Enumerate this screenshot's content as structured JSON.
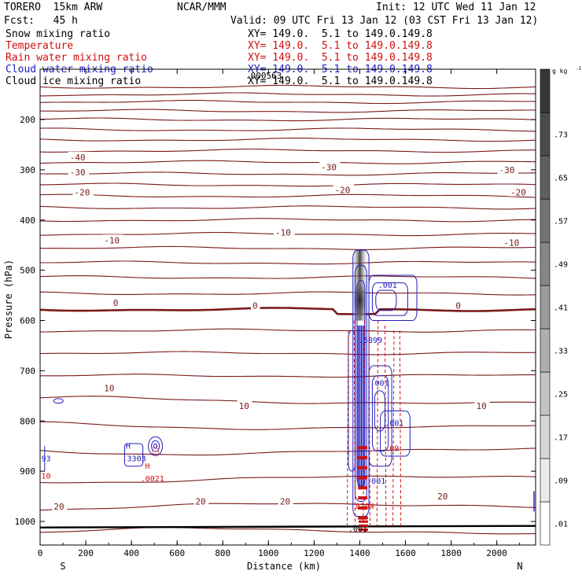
{
  "header": {
    "model": "TORERO  15km ARW",
    "org": "NCAR/MMM",
    "init": "Init: 12 UTC Wed 11 Jan 12",
    "fcst": "Fcst:   45 h",
    "valid": "Valid: 09 UTC Fri 13 Jan 12 (03 CST Fri 13 Jan 12)",
    "fields": [
      {
        "name": "Snow mixing ratio",
        "xy": "XY= 149.0.  5.1 to 149.0.149.8",
        "color": "#000000"
      },
      {
        "name": "Temperature",
        "xy": "XY= 149.0.  5.1 to 149.0.149.8",
        "color": "#d01010"
      },
      {
        "name": "Rain water mixing ratio",
        "xy": "XY= 149.0.  5.1 to 149.0.149.8",
        "color": "#d01010"
      },
      {
        "name": "Cloud water mixing ratio",
        "xy": "XY= 149.0.  5.1 to 149.0.149.8",
        "color": "#2020c0"
      },
      {
        "name": "Cloud ice mixing ratio",
        "xy": "XY= 149.0.  5.1 to 149.0.149.8",
        "color": "#000000"
      }
    ],
    "overlap_label": ".000563"
  },
  "chart_data": {
    "type": "contour-cross-section",
    "xlabel": "Distance (km)",
    "ylabel": "Pressure (hPa)",
    "xlim": [
      0,
      2170
    ],
    "ylim_hpa": [
      1050,
      115
    ],
    "x_ticks": [
      "0",
      "200",
      "400",
      "600",
      "800",
      "1000",
      "1200",
      "1400",
      "1600",
      "1800",
      "2000"
    ],
    "x_tick_values": [
      0,
      200,
      400,
      600,
      800,
      1000,
      1200,
      1400,
      1600,
      1800,
      2000
    ],
    "y_ticks": [
      "200",
      "300",
      "400",
      "500",
      "600",
      "700",
      "800",
      "900",
      "1000"
    ],
    "y_tick_values": [
      200,
      300,
      400,
      500,
      600,
      700,
      800,
      900,
      1000
    ],
    "end_left": "S",
    "end_right": "N",
    "colorbar": {
      "unit": "g kg",
      "unit_sup": "-1",
      "labels": [
        ".01",
        ".09",
        ".17",
        ".25",
        ".33",
        ".41",
        ".49",
        ".57",
        ".65",
        ".73"
      ],
      "levels": [
        0.01,
        0.09,
        0.17,
        0.25,
        0.33,
        0.41,
        0.49,
        0.57,
        0.65,
        0.73
      ]
    },
    "temperature_labels": [
      {
        "text": "-40",
        "x": 130,
        "p": 275
      },
      {
        "text": "-30",
        "x": 130,
        "p": 305
      },
      {
        "text": "-30",
        "x": 1230,
        "p": 295
      },
      {
        "text": "-30",
        "x": 2010,
        "p": 300
      },
      {
        "text": "-20",
        "x": 150,
        "p": 345
      },
      {
        "text": "-20",
        "x": 1290,
        "p": 340
      },
      {
        "text": "-20",
        "x": 2060,
        "p": 345
      },
      {
        "text": "-10",
        "x": 280,
        "p": 440
      },
      {
        "text": "-10",
        "x": 1030,
        "p": 425
      },
      {
        "text": "-10",
        "x": 2030,
        "p": 445
      },
      {
        "text": "0",
        "x": 320,
        "p": 565
      },
      {
        "text": "0",
        "x": 930,
        "p": 570
      },
      {
        "text": "0",
        "x": 1820,
        "p": 570
      },
      {
        "text": "10",
        "x": 280,
        "p": 735
      },
      {
        "text": "10",
        "x": 870,
        "p": 770
      },
      {
        "text": "10",
        "x": 1910,
        "p": 770
      },
      {
        "text": "20",
        "x": 60,
        "p": 970
      },
      {
        "text": "20",
        "x": 680,
        "p": 960
      },
      {
        "text": "20",
        "x": 1050,
        "p": 960
      },
      {
        "text": "20",
        "x": 1740,
        "p": 950
      }
    ],
    "isotherms_hpa": [
      135,
      150,
      165,
      183,
      200,
      220,
      240,
      262,
      285,
      308,
      330,
      352,
      375,
      400,
      428,
      456,
      485,
      514,
      546,
      578,
      620,
      665,
      710,
      760,
      810,
      860,
      915,
      970,
      1020
    ],
    "bold_isotherm_hpa": 578,
    "surface_hpa": 1012,
    "cloud_labels": [
      {
        "text": ".001",
        "x": 1480,
        "p": 535,
        "color": "#2020c0"
      },
      {
        "text": ".5899",
        "x": 1395,
        "p": 645,
        "color": "#2020c0"
      },
      {
        "text": ".001",
        "x": 1445,
        "p": 730,
        "color": "#2020c0"
      },
      {
        "text": ".001",
        "x": 1510,
        "p": 810,
        "color": "#2020c0"
      },
      {
        "text": ".001",
        "x": 1430,
        "p": 925,
        "color": "#2020c0"
      },
      {
        "text": "H",
        "x": 375,
        "p": 855,
        "color": "#2020c0"
      },
      {
        "text": ".3303",
        "x": 360,
        "p": 880,
        "color": "#2020c0"
      },
      {
        "text": "93",
        "x": 5,
        "p": 880,
        "color": "#2020c0"
      },
      {
        "text": "H",
        "x": 460,
        "p": 895,
        "color": "#d01010"
      },
      {
        "text": ".0021",
        "x": 440,
        "p": 920,
        "color": "#d01010"
      },
      {
        "text": "10",
        "x": 5,
        "p": 915,
        "color": "#d01010"
      },
      {
        "text": ".09",
        "x": 1510,
        "p": 860,
        "color": "#d01010"
      },
      {
        "text": ".8294",
        "x": 1360,
        "p": 975,
        "color": "#d01010"
      },
      {
        "text": ".001",
        "x": 1350,
        "p": 1020,
        "color": "#000000"
      }
    ]
  }
}
